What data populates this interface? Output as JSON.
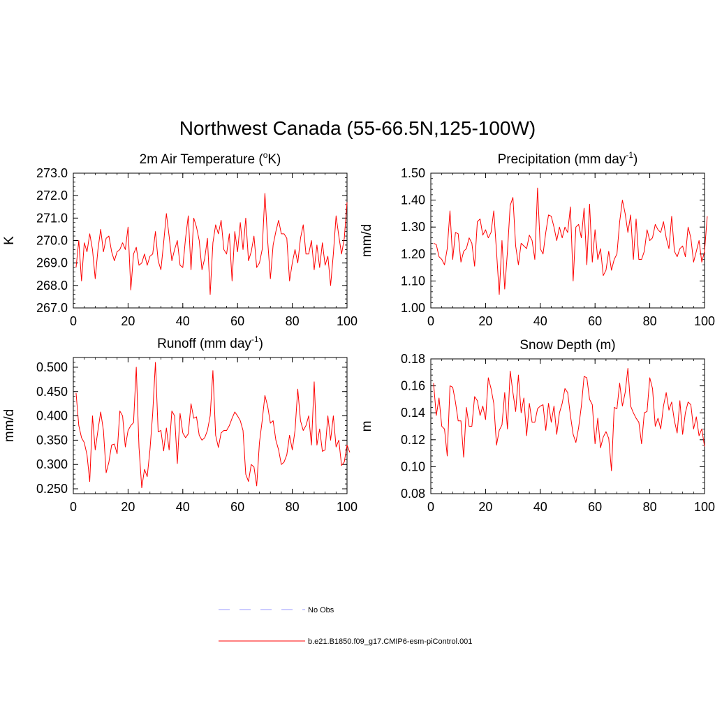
{
  "title": "Northwest Canada (55-66.5N,125-100W)",
  "colors": {
    "model": "#ff0000",
    "obs": "#9999ff",
    "axis": "#000000"
  },
  "legend": {
    "items": [
      {
        "label": "No Obs",
        "style": "dashed",
        "color": "#9999ff"
      },
      {
        "label": "b.e21.B1850.f09_g17.CMIP6-esm-piControl.001",
        "style": "solid",
        "color": "#ff0000"
      }
    ]
  },
  "chart_data": [
    {
      "type": "line",
      "title": "2m Air Temperature (",
      "title_super": "o",
      "title_suffix": "K)",
      "ylabel": "K",
      "xlim": [
        0,
        100
      ],
      "ylim": [
        267.0,
        273.0
      ],
      "xticks": [
        0,
        20,
        40,
        60,
        80,
        100
      ],
      "xtick_labels": [
        "0",
        "20",
        "40",
        "60",
        "80",
        "100"
      ],
      "yticks": [
        267.0,
        268.0,
        269.0,
        270.0,
        271.0,
        272.0,
        273.0
      ],
      "ytick_labels": [
        "267.0",
        "268.0",
        "269.0",
        "270.0",
        "271.0",
        "272.0",
        "273.0"
      ],
      "series": [
        {
          "name": "b.e21.B1850.f09_g17.CMIP6-esm-piControl.001",
          "x_start": 1,
          "x_step": 1,
          "values": [
            268.8,
            270.0,
            268.2,
            269.9,
            269.5,
            270.3,
            269.6,
            268.3,
            269.6,
            270.5,
            269.5,
            270.1,
            270.2,
            269.5,
            269.1,
            269.5,
            269.6,
            269.9,
            269.6,
            270.6,
            267.8,
            269.4,
            269.7,
            268.9,
            269.0,
            269.4,
            268.9,
            269.3,
            269.4,
            270.4,
            269.1,
            268.7,
            269.9,
            271.2,
            270.2,
            269.1,
            269.6,
            270.0,
            268.9,
            268.8,
            270.1,
            271.1,
            268.7,
            271.0,
            270.6,
            270.0,
            268.7,
            269.2,
            270.1,
            267.6,
            269.9,
            270.7,
            270.3,
            270.9,
            269.6,
            269.4,
            270.3,
            268.2,
            270.4,
            269.5,
            270.8,
            269.6,
            271.0,
            269.1,
            269.5,
            270.2,
            268.8,
            269.0,
            269.6,
            272.1,
            270.0,
            268.3,
            269.8,
            270.4,
            270.9,
            270.3,
            270.3,
            270.1,
            268.2,
            269.0,
            269.6,
            269.0,
            270.1,
            270.7,
            269.4,
            269.4,
            270.0,
            268.7,
            269.8,
            268.8,
            269.9,
            268.9,
            269.3,
            268.0,
            269.4,
            271.1,
            270.2,
            269.4,
            270.1,
            271.7
          ]
        }
      ]
    },
    {
      "type": "line",
      "title": "Precipitation (mm day",
      "title_super": "-1",
      "title_suffix": ")",
      "ylabel": "mm/d",
      "xlim": [
        0,
        100
      ],
      "ylim": [
        1.0,
        1.5
      ],
      "xticks": [
        0,
        20,
        40,
        60,
        80,
        100
      ],
      "xtick_labels": [
        "0",
        "20",
        "40",
        "60",
        "80",
        "100"
      ],
      "yticks": [
        1.0,
        1.1,
        1.2,
        1.3,
        1.4,
        1.5
      ],
      "ytick_labels": [
        "1.00",
        "1.10",
        "1.20",
        "1.30",
        "1.40",
        "1.50"
      ],
      "series": [
        {
          "name": "b.e21.B1850.f09_g17.CMIP6-esm-piControl.001",
          "x_start": 1,
          "x_step": 1,
          "values": [
            1.24,
            1.235,
            1.19,
            1.18,
            1.16,
            1.22,
            1.36,
            1.18,
            1.28,
            1.275,
            1.17,
            1.21,
            1.22,
            1.26,
            1.24,
            1.155,
            1.32,
            1.33,
            1.27,
            1.29,
            1.26,
            1.28,
            1.36,
            1.21,
            1.05,
            1.25,
            1.07,
            1.21,
            1.38,
            1.41,
            1.23,
            1.16,
            1.24,
            1.23,
            1.22,
            1.27,
            1.25,
            1.18,
            1.445,
            1.22,
            1.2,
            1.28,
            1.345,
            1.34,
            1.3,
            1.25,
            1.3,
            1.26,
            1.3,
            1.28,
            1.375,
            1.1,
            1.3,
            1.31,
            1.26,
            1.37,
            1.16,
            1.385,
            1.17,
            1.29,
            1.18,
            1.22,
            1.12,
            1.14,
            1.21,
            1.14,
            1.18,
            1.2,
            1.32,
            1.4,
            1.35,
            1.28,
            1.345,
            1.18,
            1.33,
            1.18,
            1.18,
            1.21,
            1.29,
            1.25,
            1.26,
            1.31,
            1.29,
            1.28,
            1.32,
            1.26,
            1.22,
            1.34,
            1.21,
            1.19,
            1.22,
            1.23,
            1.19,
            1.3,
            1.26,
            1.17,
            1.21,
            1.25,
            1.17,
            1.21,
            1.34
          ]
        }
      ]
    },
    {
      "type": "line",
      "title": "Runoff (mm day",
      "title_super": "-1",
      "title_suffix": ")",
      "ylabel": "mm/d",
      "xlim": [
        0,
        100
      ],
      "ylim": [
        0.24,
        0.52
      ],
      "xticks": [
        0,
        20,
        40,
        60,
        80,
        100
      ],
      "xtick_labels": [
        "0",
        "20",
        "40",
        "60",
        "80",
        "100"
      ],
      "yticks": [
        0.25,
        0.3,
        0.35,
        0.4,
        0.45,
        0.5
      ],
      "ytick_labels": [
        "0.250",
        "0.300",
        "0.350",
        "0.400",
        "0.450",
        "0.500"
      ],
      "series": [
        {
          "name": "b.e21.B1850.f09_g17.CMIP6-esm-piControl.001",
          "x_start": 1,
          "x_step": 1,
          "values": [
            0.447,
            0.38,
            0.355,
            0.345,
            0.32,
            0.265,
            0.4,
            0.33,
            0.37,
            0.408,
            0.37,
            0.283,
            0.305,
            0.34,
            0.342,
            0.322,
            0.41,
            0.4,
            0.336,
            0.37,
            0.38,
            0.386,
            0.5,
            0.335,
            0.252,
            0.29,
            0.275,
            0.33,
            0.405,
            0.51,
            0.367,
            0.37,
            0.328,
            0.375,
            0.33,
            0.41,
            0.4,
            0.302,
            0.405,
            0.365,
            0.355,
            0.363,
            0.425,
            0.395,
            0.398,
            0.36,
            0.35,
            0.355,
            0.37,
            0.4,
            0.493,
            0.36,
            0.335,
            0.365,
            0.37,
            0.37,
            0.38,
            0.395,
            0.408,
            0.4,
            0.39,
            0.37,
            0.28,
            0.265,
            0.3,
            0.295,
            0.256,
            0.345,
            0.39,
            0.442,
            0.42,
            0.385,
            0.39,
            0.35,
            0.33,
            0.3,
            0.305,
            0.32,
            0.36,
            0.33,
            0.37,
            0.455,
            0.39,
            0.37,
            0.38,
            0.4,
            0.34,
            0.47,
            0.34,
            0.373,
            0.327,
            0.33,
            0.4,
            0.35,
            0.4,
            0.336,
            0.35,
            0.298,
            0.305,
            0.34,
            0.325
          ]
        }
      ]
    },
    {
      "type": "line",
      "title": "Snow Depth (m)",
      "title_super": "",
      "title_suffix": "",
      "ylabel": "m",
      "xlim": [
        0,
        100
      ],
      "ylim": [
        0.08,
        0.18
      ],
      "xticks": [
        0,
        20,
        40,
        60,
        80,
        100
      ],
      "xtick_labels": [
        "0",
        "20",
        "40",
        "60",
        "80",
        "100"
      ],
      "yticks": [
        0.08,
        0.1,
        0.12,
        0.14,
        0.16,
        0.18
      ],
      "ytick_labels": [
        "0.08",
        "0.10",
        "0.12",
        "0.14",
        "0.16",
        "0.18"
      ],
      "series": [
        {
          "name": "b.e21.B1850.f09_g17.CMIP6-esm-piControl.001",
          "x_start": 1,
          "x_step": 1,
          "values": [
            0.162,
            0.138,
            0.151,
            0.13,
            0.128,
            0.108,
            0.16,
            0.159,
            0.148,
            0.134,
            0.134,
            0.107,
            0.144,
            0.13,
            0.13,
            0.152,
            0.149,
            0.138,
            0.145,
            0.135,
            0.166,
            0.158,
            0.147,
            0.116,
            0.127,
            0.131,
            0.155,
            0.128,
            0.171,
            0.155,
            0.141,
            0.168,
            0.14,
            0.151,
            0.123,
            0.147,
            0.133,
            0.133,
            0.143,
            0.145,
            0.146,
            0.127,
            0.147,
            0.133,
            0.145,
            0.124,
            0.14,
            0.147,
            0.158,
            0.155,
            0.138,
            0.124,
            0.118,
            0.129,
            0.145,
            0.167,
            0.166,
            0.15,
            0.146,
            0.117,
            0.136,
            0.114,
            0.122,
            0.126,
            0.121,
            0.097,
            0.144,
            0.143,
            0.162,
            0.145,
            0.155,
            0.173,
            0.145,
            0.14,
            0.136,
            0.133,
            0.117,
            0.14,
            0.141,
            0.166,
            0.158,
            0.13,
            0.136,
            0.128,
            0.145,
            0.155,
            0.142,
            0.148,
            0.134,
            0.125,
            0.149,
            0.124,
            0.14,
            0.148,
            0.146,
            0.128,
            0.137,
            0.123,
            0.128,
            0.115
          ]
        }
      ]
    }
  ]
}
